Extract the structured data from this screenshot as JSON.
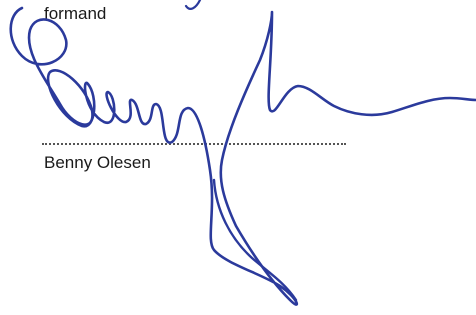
{
  "signature_block": {
    "role": "formand",
    "name": "Benny Olesen"
  }
}
